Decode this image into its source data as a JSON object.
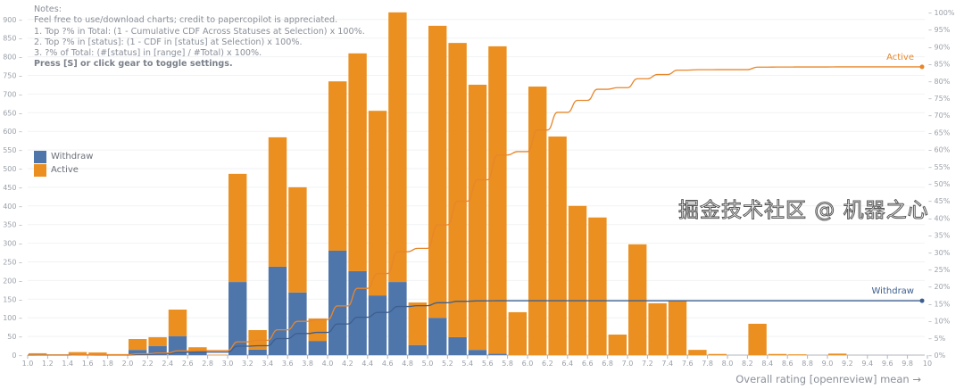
{
  "notes": {
    "heading": "Notes:",
    "lines": [
      "Feel free to use/download charts; credit to papercopilot is appreciated.",
      "1. Top ?% in Total: (1 - Cumulative CDF Across Statuses at Selection) x 100%.",
      "2. Top ?% in [status]: (1 - CDF in [status] at Selection) x 100%.",
      "3. ?% of Total: (#[status] in [range] / #Total) x 100%."
    ],
    "hint": "Press [S] or click gear to toggle settings."
  },
  "watermark": "掘金技术社区 @ 机器之心",
  "chart_data": {
    "type": "bar",
    "stacked": true,
    "xlabel": "Overall rating [openreview] mean →",
    "ylabel": "",
    "xlim": [
      1.0,
      10.0
    ],
    "ylim": [
      0,
      920
    ],
    "y2lim": [
      0,
      100
    ],
    "bin_width": 0.2,
    "x_ticks": [
      "1.0",
      "1.2",
      "1.4",
      "1.6",
      "1.8",
      "2.0",
      "2.2",
      "2.4",
      "2.6",
      "2.8",
      "3.0",
      "3.2",
      "3.4",
      "3.6",
      "3.8",
      "4.0",
      "4.2",
      "4.4",
      "4.6",
      "4.8",
      "5.0",
      "5.2",
      "5.4",
      "5.6",
      "5.8",
      "6.0",
      "6.2",
      "6.4",
      "6.6",
      "6.8",
      "7.0",
      "7.2",
      "7.4",
      "7.6",
      "7.8",
      "8.0",
      "8.2",
      "8.4",
      "8.6",
      "8.8",
      "9.0",
      "9.2",
      "9.4",
      "9.6",
      "9.8",
      "10"
    ],
    "y_ticks": [
      0,
      50,
      100,
      150,
      200,
      250,
      300,
      350,
      400,
      450,
      500,
      550,
      600,
      650,
      700,
      750,
      800,
      850,
      900
    ],
    "y2_ticks": [
      "0%",
      "5%",
      "10%",
      "15%",
      "20%",
      "25%",
      "30%",
      "35%",
      "40%",
      "45%",
      "50%",
      "55%",
      "60%",
      "65%",
      "70%",
      "75%",
      "80%",
      "85%",
      "90%",
      "95%",
      "100%"
    ],
    "grid": true,
    "legend_position": "left",
    "bin_starts": [
      1.0,
      1.2,
      1.4,
      1.6,
      1.8,
      2.0,
      2.2,
      2.4,
      2.6,
      2.8,
      3.0,
      3.2,
      3.4,
      3.6,
      3.8,
      4.0,
      4.2,
      4.4,
      4.6,
      4.8,
      5.0,
      5.2,
      5.4,
      5.6,
      5.8,
      6.0,
      6.2,
      6.4,
      6.6,
      6.8,
      7.0,
      7.2,
      7.4,
      7.6,
      7.8,
      8.0,
      8.2,
      8.4,
      8.6,
      8.8,
      9.0
    ],
    "series": [
      {
        "name": "Withdraw",
        "color": "#4f76ab",
        "values": [
          2,
          0,
          2,
          1,
          0,
          14,
          24,
          51,
          8,
          0,
          196,
          15,
          237,
          168,
          38,
          280,
          225,
          160,
          196,
          27,
          100,
          48,
          14,
          4,
          0,
          0,
          0,
          0,
          0,
          0,
          0,
          0,
          0,
          0,
          0,
          0,
          0,
          0,
          0,
          0,
          0
        ]
      },
      {
        "name": "Active",
        "color": "#ea8f20",
        "values": [
          3,
          0,
          6,
          6,
          0,
          29,
          24,
          71,
          13,
          1,
          290,
          52,
          347,
          282,
          60,
          454,
          584,
          495,
          723,
          114,
          783,
          789,
          711,
          824,
          115,
          720,
          586,
          400,
          369,
          55,
          297,
          139,
          146,
          14,
          3,
          0,
          84,
          3,
          2,
          0,
          4
        ]
      }
    ],
    "cdf_lines": [
      {
        "name": "Withdraw",
        "color": "#3d5f8f",
        "end_label": "Withdraw"
      },
      {
        "name": "Active",
        "color": "#e8862a",
        "end_label": "Active"
      }
    ]
  }
}
